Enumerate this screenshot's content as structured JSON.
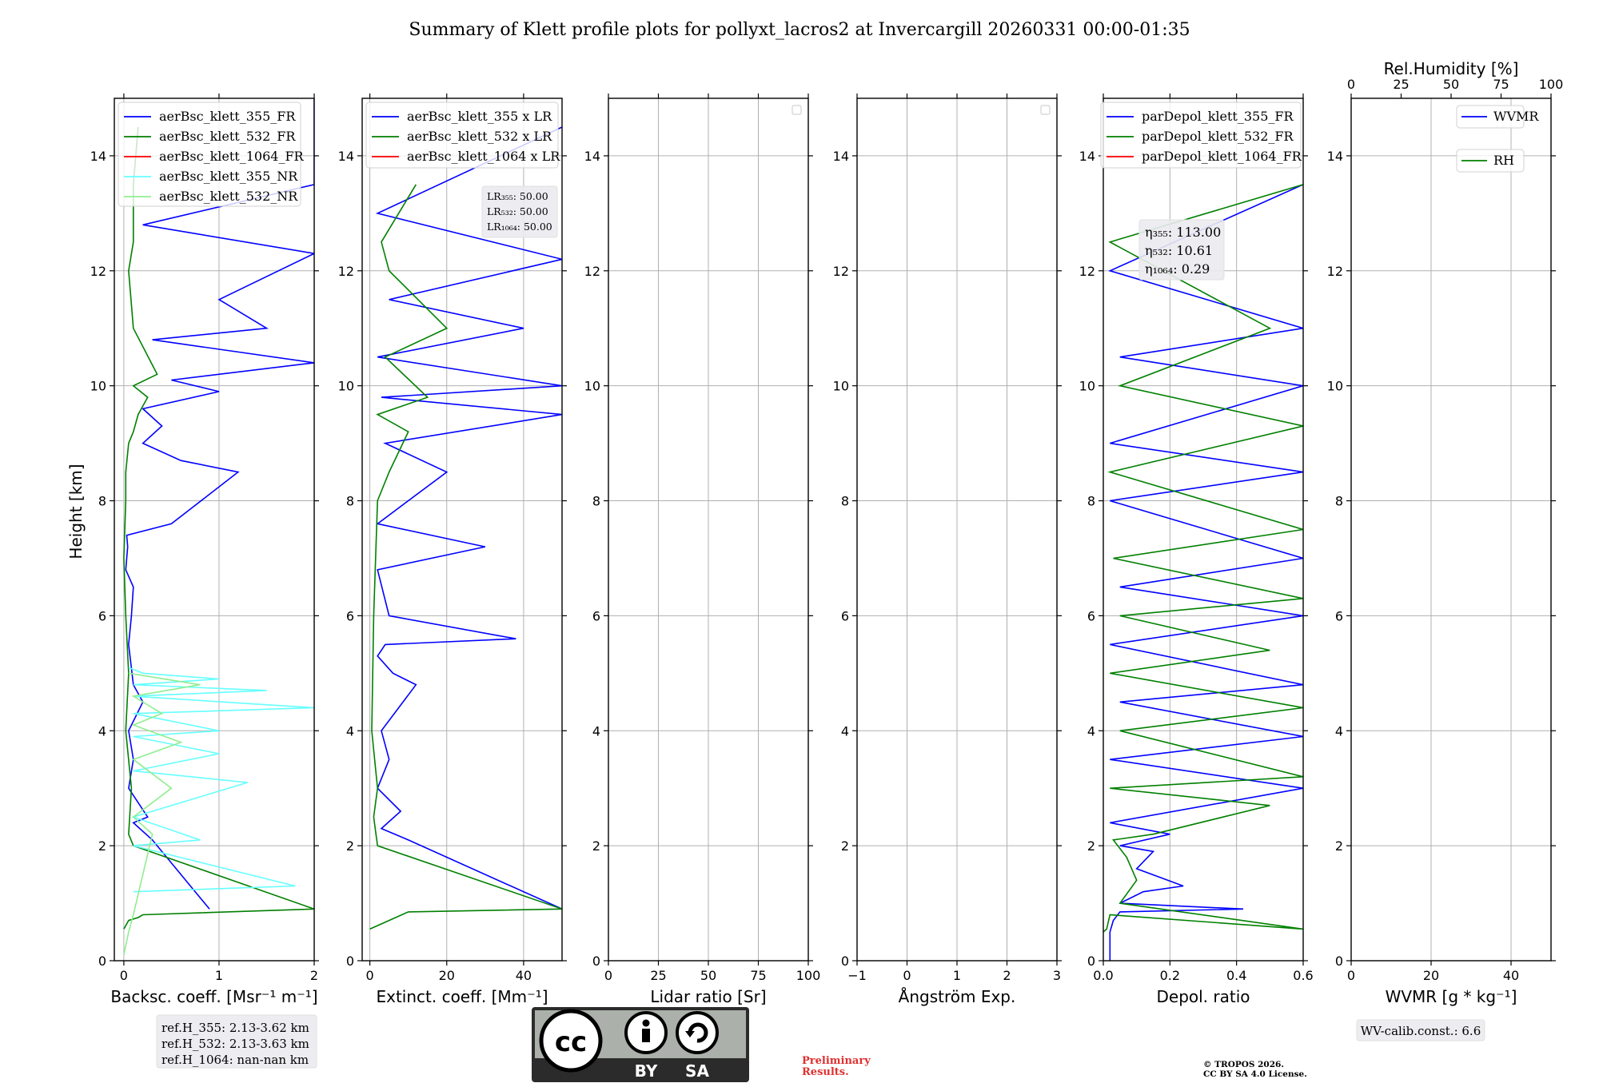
{
  "figure_title": "Summary of Klett profile plots for pollyxt_lacros2 at Invercargill 20260331 00:00-01:35",
  "y_label": "Height [km]",
  "colors": {
    "c355": "#0000ff",
    "c532": "#008000",
    "c1064": "#ff0000",
    "c355nr": "#66ffff",
    "c532nr": "#90ee90"
  },
  "chart_data": [
    {
      "type": "line",
      "panel": "backscatter",
      "xlabel": "Backsc. coeff. [Msr⁻¹ m⁻¹]",
      "xlim": [
        -0.1,
        2.0
      ],
      "ylim": [
        0,
        15
      ],
      "xticks": [
        0,
        1,
        2
      ],
      "xtick_labels": [
        "0",
        "1",
        "2"
      ],
      "yticks": [
        0,
        2,
        4,
        6,
        8,
        10,
        12,
        14
      ],
      "ytick_labels": [
        "0",
        "2",
        "4",
        "6",
        "8",
        "10",
        "12",
        "14"
      ],
      "legend": [
        "aerBsc_klett_355_FR",
        "aerBsc_klett_532_FR",
        "aerBsc_klett_1064_FR",
        "aerBsc_klett_355_NR",
        "aerBsc_klett_532_NR"
      ],
      "series": [
        {
          "name": "aerBsc_klett_355_FR",
          "color_key": "c355",
          "x": [
            0.9,
            0.3,
            0.1,
            0.25,
            0.05,
            0.1,
            0.05,
            0.2,
            0.1,
            0.05,
            0.08,
            0.1,
            0.02,
            0.04,
            0.03,
            0.5,
            1.2,
            0.6,
            0.2,
            0.4,
            0.2,
            1.0,
            0.5,
            2.0,
            0.3,
            1.5,
            1.0,
            2.0,
            0.2,
            2.0,
            2.0,
            2.0
          ],
          "y": [
            0.9,
            2.1,
            2.4,
            2.5,
            3.0,
            3.5,
            4.0,
            4.5,
            4.8,
            5.5,
            6.0,
            6.5,
            6.8,
            7.2,
            7.4,
            7.6,
            8.5,
            8.7,
            9.0,
            9.3,
            9.6,
            9.9,
            10.1,
            10.4,
            10.8,
            11.0,
            11.5,
            12.3,
            12.8,
            13.5,
            14.2,
            15.0
          ]
        },
        {
          "name": "aerBsc_klett_532_FR",
          "color_key": "c532",
          "x": [
            0.0,
            0.05,
            0.15,
            0.2,
            2.0,
            0.1,
            0.05,
            0.08,
            0.02,
            0.05,
            0.02,
            0.0,
            0.02,
            0.02,
            0.05,
            0.1,
            0.15,
            0.25,
            0.1,
            0.35,
            0.1,
            0.05,
            0.1,
            0.1,
            0.15
          ],
          "y": [
            0.55,
            0.7,
            0.75,
            0.8,
            0.9,
            2.0,
            2.2,
            3.0,
            4.0,
            5.0,
            6.0,
            7.0,
            8.0,
            8.5,
            9.0,
            9.2,
            9.5,
            9.8,
            10.0,
            10.2,
            11.0,
            12.0,
            12.5,
            13.5,
            14.5
          ]
        },
        {
          "name": "aerBsc_klett_355_NR",
          "color_key": "c355nr",
          "x": [
            0.1,
            1.8,
            0.1,
            0.8,
            0.1,
            1.3,
            0.1,
            1.0,
            0.1,
            1.0,
            0.1,
            2.0,
            0.1,
            1.5,
            0.1,
            1.0,
            0.2,
            0.05
          ],
          "y": [
            1.2,
            1.3,
            2.0,
            2.1,
            2.5,
            3.1,
            3.3,
            3.6,
            3.9,
            4.0,
            4.3,
            4.4,
            4.6,
            4.7,
            4.8,
            4.9,
            5.0,
            5.1
          ]
        },
        {
          "name": "aerBsc_klett_532_NR",
          "color_key": "c532nr",
          "x": [
            0.0,
            0.05,
            0.1,
            0.3,
            0.1,
            0.5,
            0.1,
            0.6,
            0.1,
            0.4,
            0.1,
            0.8,
            0.05
          ],
          "y": [
            0.1,
            0.5,
            0.8,
            2.2,
            2.5,
            3.0,
            3.5,
            3.8,
            4.1,
            4.3,
            4.6,
            4.8,
            5.0
          ]
        }
      ],
      "ref_heights": [
        "ref.H_355: 2.13-3.62 km",
        "ref.H_532: 2.13-3.63 km",
        "ref.H_1064: nan-nan km"
      ]
    },
    {
      "type": "line",
      "panel": "extinction",
      "xlabel": "Extinct. coeff. [Mm⁻¹]",
      "xlim": [
        -2,
        50
      ],
      "ylim": [
        0,
        15
      ],
      "xticks": [
        0,
        20,
        40
      ],
      "xtick_labels": [
        "0",
        "20",
        "40"
      ],
      "yticks": [
        0,
        2,
        4,
        6,
        8,
        10,
        12,
        14
      ],
      "ytick_labels": [
        "0",
        "2",
        "4",
        "6",
        "8",
        "10",
        "12",
        "14"
      ],
      "legend": [
        "aerBsc_klett_355 x LR",
        "aerBsc_klett_532 x LR",
        "aerBsc_klett_1064 x LR"
      ],
      "lidar_ratios": [
        "LR₃₅₅: 50.00",
        "LR₅₃₂: 50.00",
        "LR₁₀₆₄: 50.00"
      ],
      "series": [
        {
          "name": "aerBsc_klett_355 x LR",
          "color_key": "c355",
          "x": [
            50,
            10,
            3,
            8,
            2,
            5,
            3,
            12,
            6,
            2,
            4,
            38,
            5,
            2,
            30,
            2,
            20,
            4,
            50,
            3,
            50,
            2,
            40,
            5,
            50,
            2,
            50
          ],
          "y": [
            0.9,
            2.1,
            2.3,
            2.6,
            3.0,
            3.5,
            4.0,
            4.8,
            5.0,
            5.3,
            5.5,
            5.6,
            6.0,
            6.8,
            7.2,
            7.6,
            8.5,
            9.0,
            9.5,
            9.8,
            10.0,
            10.5,
            11.0,
            11.5,
            12.2,
            13.0,
            14.5
          ]
        },
        {
          "name": "aerBsc_klett_532 x LR",
          "color_key": "c532",
          "x": [
            0,
            5,
            10,
            50,
            2,
            1,
            2,
            0.5,
            1,
            2,
            5,
            10,
            2,
            15,
            4,
            20,
            5,
            3,
            12
          ],
          "y": [
            0.55,
            0.7,
            0.85,
            0.9,
            2.0,
            2.5,
            3.0,
            4.0,
            6.0,
            8.0,
            8.5,
            9.2,
            9.5,
            9.8,
            10.5,
            11.0,
            12.0,
            12.5,
            13.5
          ]
        }
      ]
    },
    {
      "type": "line",
      "panel": "lidar_ratio",
      "xlabel": "Lidar ratio [Sr]",
      "xlim": [
        0,
        100
      ],
      "ylim": [
        0,
        15
      ],
      "xticks": [
        0,
        25,
        50,
        75,
        100
      ],
      "xtick_labels": [
        "0",
        "25",
        "50",
        "75",
        "100"
      ],
      "yticks": [
        0,
        2,
        4,
        6,
        8,
        10,
        12,
        14
      ],
      "ytick_labels": [
        "0",
        "2",
        "4",
        "6",
        "8",
        "10",
        "12",
        "14"
      ],
      "series": []
    },
    {
      "type": "line",
      "panel": "angstrom",
      "xlabel": "Ångström Exp.",
      "xlim": [
        -1,
        3
      ],
      "ylim": [
        0,
        15
      ],
      "xticks": [
        -1,
        0,
        1,
        2,
        3
      ],
      "xtick_labels": [
        "−1",
        "0",
        "1",
        "2",
        "3"
      ],
      "yticks": [
        0,
        2,
        4,
        6,
        8,
        10,
        12,
        14
      ],
      "ytick_labels": [
        "0",
        "2",
        "4",
        "6",
        "8",
        "10",
        "12",
        "14"
      ],
      "series": []
    },
    {
      "type": "line",
      "panel": "depol",
      "xlabel": "Depol. ratio",
      "xlim": [
        0,
        0.6
      ],
      "ylim": [
        0,
        15
      ],
      "xticks": [
        0.0,
        0.2,
        0.4,
        0.6
      ],
      "xtick_labels": [
        "0.0",
        "0.2",
        "0.4",
        "0.6"
      ],
      "yticks": [
        0,
        2,
        4,
        6,
        8,
        10,
        12,
        14
      ],
      "ytick_labels": [
        "0",
        "2",
        "4",
        "6",
        "8",
        "10",
        "12",
        "14"
      ],
      "legend": [
        "parDepol_klett_355_FR",
        "parDepol_klett_532_FR",
        "parDepol_klett_1064_FR"
      ],
      "eta": [
        "η₃₅₅: 113.00",
        "η₅₃₂: 10.61",
        "η₁₀₆₄: 0.29"
      ],
      "series": [
        {
          "name": "parDepol_klett_355_FR",
          "color_key": "c355",
          "x": [
            0.02,
            0.02,
            0.03,
            0.05,
            0.42,
            0.05,
            0.12,
            0.24,
            0.1,
            0.15,
            0.05,
            0.2,
            0.02,
            0.6,
            0.02,
            0.6,
            0.05,
            0.6,
            0.02,
            0.6,
            0.05,
            0.6,
            0.02,
            0.6,
            0.02,
            0.6,
            0.05,
            0.6,
            0.02,
            0.6
          ],
          "y": [
            0.0,
            0.5,
            0.7,
            0.85,
            0.9,
            1.0,
            1.2,
            1.3,
            1.6,
            1.9,
            2.0,
            2.2,
            2.4,
            3.0,
            3.5,
            3.9,
            4.5,
            4.8,
            5.5,
            6.0,
            6.5,
            7.0,
            8.0,
            8.5,
            9.0,
            10.0,
            10.5,
            11.0,
            12.0,
            13.5
          ]
        },
        {
          "name": "parDepol_klett_532_FR",
          "color_key": "c532",
          "x": [
            0.0,
            0.01,
            0.02,
            0.6,
            0.05,
            0.1,
            0.07,
            0.03,
            0.15,
            0.5,
            0.02,
            0.6,
            0.05,
            0.6,
            0.02,
            0.5,
            0.05,
            0.6,
            0.03,
            0.6,
            0.02,
            0.6,
            0.05,
            0.5,
            0.02,
            0.6
          ],
          "y": [
            0.5,
            0.55,
            0.8,
            0.55,
            1.0,
            1.4,
            1.8,
            2.1,
            2.2,
            2.7,
            3.0,
            3.2,
            4.0,
            4.4,
            5.0,
            5.4,
            6.0,
            6.3,
            7.0,
            7.5,
            8.5,
            9.3,
            10.0,
            11.0,
            12.5,
            13.5
          ]
        }
      ]
    },
    {
      "type": "line",
      "panel": "wvmr",
      "xlabel": "WVMR [g * kg⁻¹]",
      "top_xlabel": "Rel.Humidity [%]",
      "xlim": [
        0,
        50
      ],
      "ylim": [
        0,
        15
      ],
      "xticks": [
        0,
        20,
        40
      ],
      "xtick_labels": [
        "0",
        "20",
        "40"
      ],
      "top_xticks": [
        0,
        25,
        50,
        75,
        100
      ],
      "top_xtick_labels": [
        "0",
        "25",
        "50",
        "75",
        "100"
      ],
      "yticks": [
        0,
        2,
        4,
        6,
        8,
        10,
        12,
        14
      ],
      "ytick_labels": [
        "0",
        "2",
        "4",
        "6",
        "8",
        "10",
        "12",
        "14"
      ],
      "legend": [
        "WVMR",
        "RH"
      ],
      "calib_note": "WV-calib.const.: 6.6",
      "series": []
    }
  ],
  "license": {
    "cc": "cc",
    "by": "BY",
    "sa": "SA"
  },
  "preliminary": [
    "Preliminary",
    "Results."
  ],
  "copyright": [
    "© TROPOS 2026.",
    "CC BY SA 4.0 License."
  ]
}
